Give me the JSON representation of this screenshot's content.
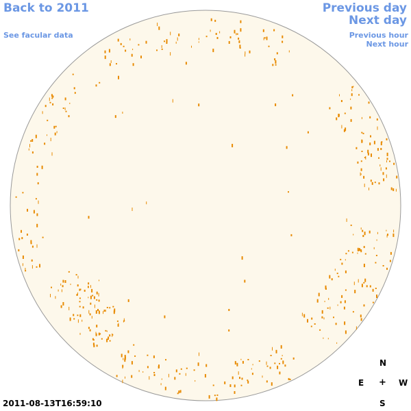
{
  "nav": {
    "back_label": "Back to 2011",
    "facular_label": "See facular data",
    "prev_day_label": "Previous day",
    "next_day_label": "Next day",
    "prev_hour_label": "Previous hour",
    "next_hour_label": "Next hour"
  },
  "compass": {
    "north": "N",
    "east": "E",
    "center": "+",
    "west": "W",
    "south": "S"
  },
  "timestamp": "2011-08-13T16:59:10",
  "colors": {
    "link": "#6b97e4",
    "disk_fill": "#fdf8eb",
    "disk_stroke": "#999999",
    "facula": "#e88a00"
  },
  "facular_regions": [
    {
      "name": "north-limb-band",
      "count": 70
    },
    {
      "name": "east-limb-north",
      "count": 35
    },
    {
      "name": "east-limb-middle",
      "count": 30
    },
    {
      "name": "southeast-cluster",
      "count": 90
    },
    {
      "name": "south-limb-band",
      "count": 90
    },
    {
      "name": "west-limb-north-cluster",
      "count": 70
    },
    {
      "name": "west-limb-south-cluster",
      "count": 90
    },
    {
      "name": "scattered-interior",
      "count": 25
    }
  ]
}
